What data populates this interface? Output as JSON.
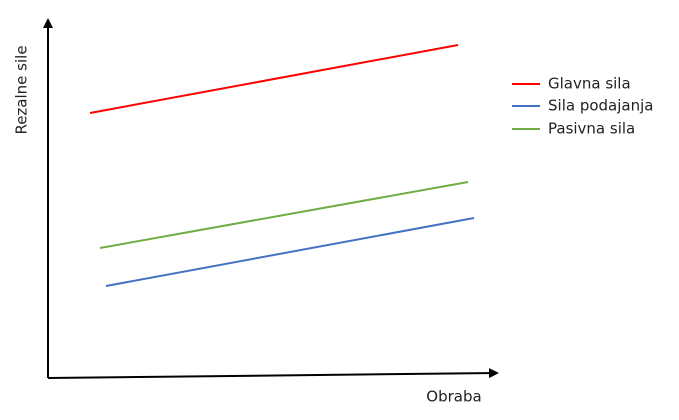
{
  "axes": {
    "x_label": "Obraba",
    "y_label": "Rezalne sile"
  },
  "series": [
    {
      "name": "Glavna sila",
      "color": "#ff0000"
    },
    {
      "name": "Sila podajanja",
      "color": "#4472c4"
    },
    {
      "name": "Pasivna sila",
      "color": "#70ad47"
    }
  ]
}
